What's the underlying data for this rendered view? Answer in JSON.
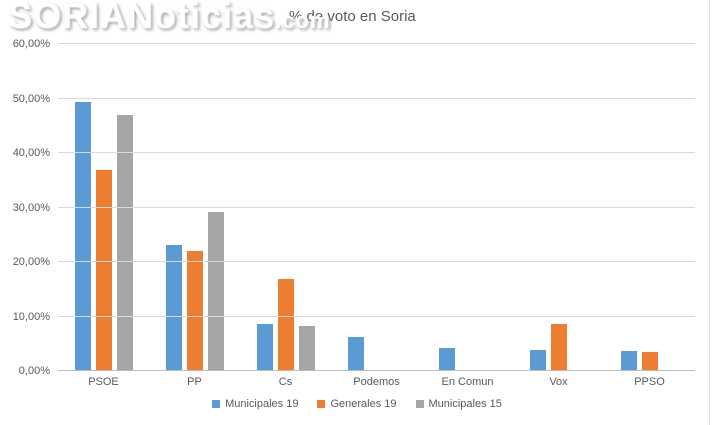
{
  "logo": {
    "brand": "SORIANoticias",
    "tld": ".com"
  },
  "chart_data": {
    "type": "bar",
    "title": "% de voto en Soria",
    "categories": [
      "PSOE",
      "PP",
      "Cs",
      "Podemos",
      "En Comun",
      "Vox",
      "PPSO"
    ],
    "series": [
      {
        "name": "Municipales 19",
        "color": "#5B9BD5",
        "values": [
          49.4,
          23.2,
          8.7,
          6.3,
          4.2,
          3.9,
          3.6
        ]
      },
      {
        "name": "Generales 19",
        "color": "#ED7D31",
        "values": [
          36.9,
          22.1,
          16.9,
          null,
          null,
          8.7,
          3.4
        ]
      },
      {
        "name": "Municipales 15",
        "color": "#A5A5A5",
        "values": [
          47.0,
          29.2,
          8.3,
          null,
          null,
          null,
          null
        ]
      }
    ],
    "ylim": [
      0,
      60
    ],
    "ytick_step": 10,
    "ytick_labels": [
      "0,00%",
      "10,00%",
      "20,00%",
      "30,00%",
      "40,00%",
      "50,00%",
      "60,00%"
    ],
    "grid": true,
    "legend_position": "bottom",
    "axis_text_color": "#595959",
    "gridline_color": "#d9d9d9"
  }
}
